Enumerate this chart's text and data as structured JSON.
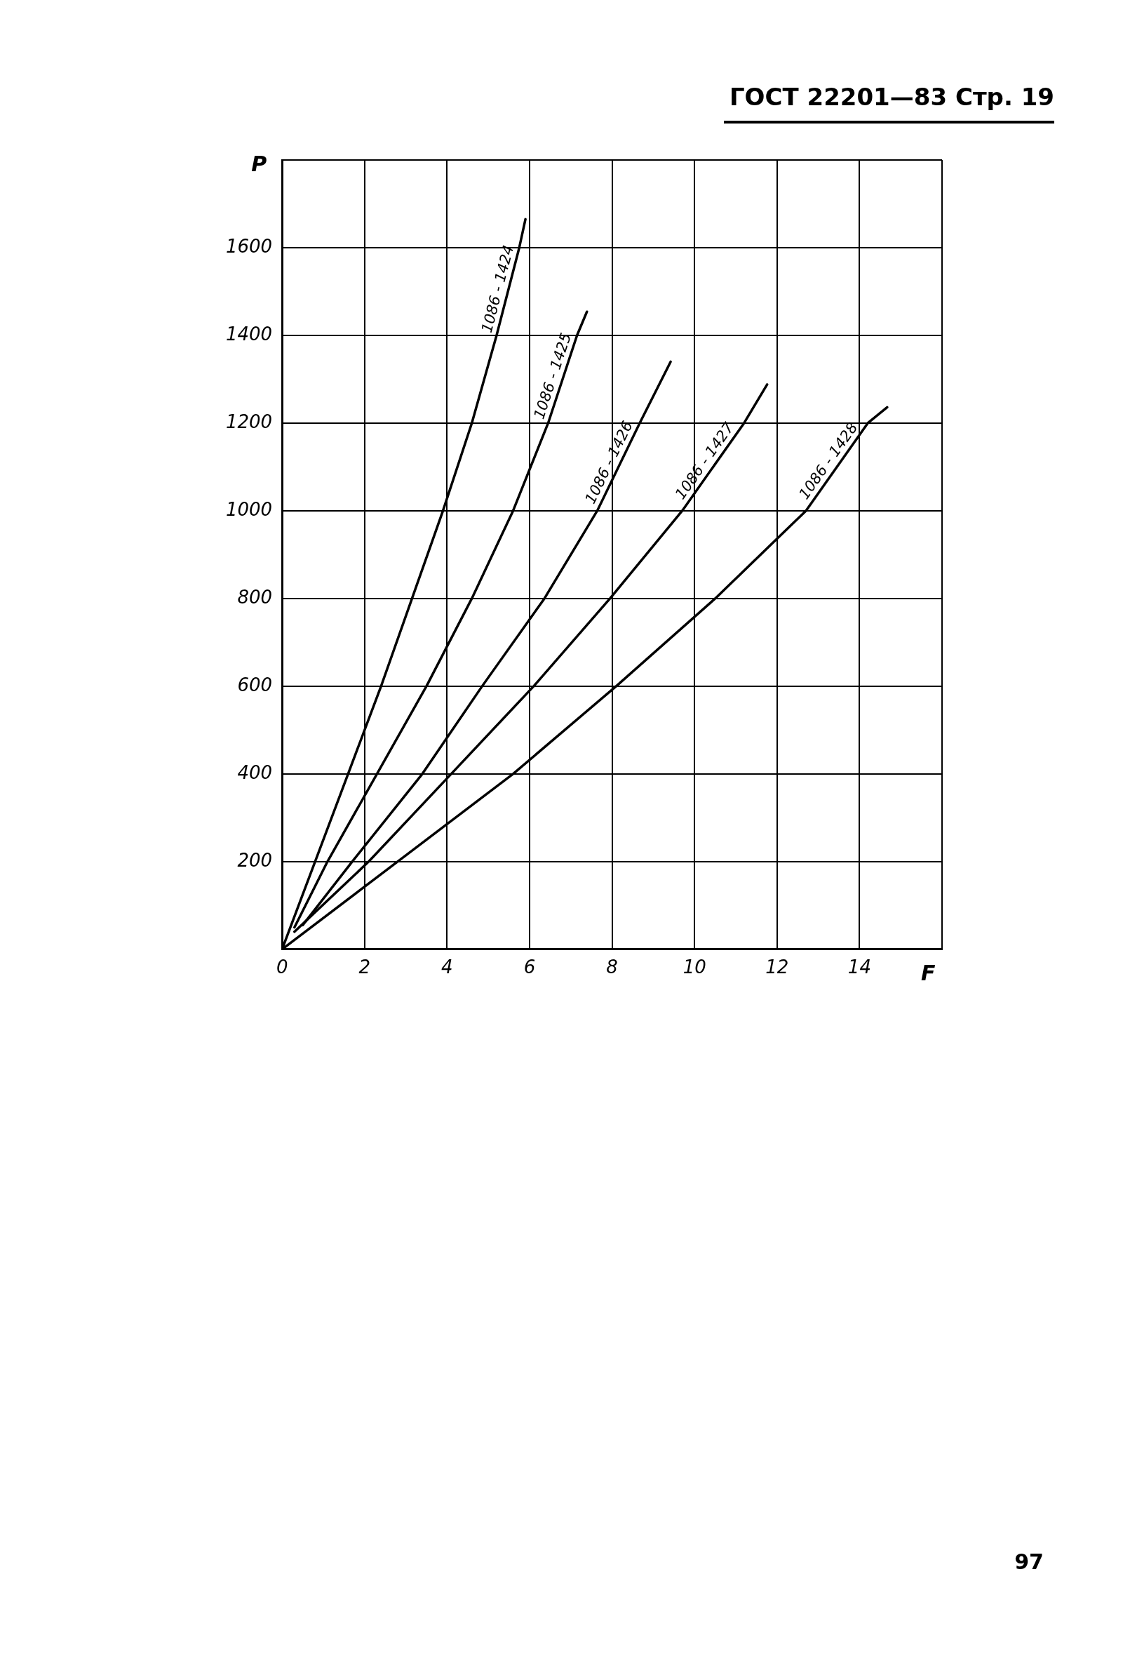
{
  "chart_data": {
    "type": "line",
    "title": "ГОСТ 22201—83 Стр. 19",
    "xlabel": "F",
    "ylabel": "P",
    "annotations": [
      "97"
    ],
    "xlim": [
      0,
      16
    ],
    "xticks": [
      0,
      2,
      4,
      6,
      8,
      10,
      12,
      14,
      {
        "value": 16,
        "label": null
      }
    ],
    "ylim": [
      0,
      1800
    ],
    "yticks": [
      {
        "value": 0,
        "label": null
      },
      200,
      400,
      600,
      800,
      1000,
      1200,
      1400,
      1600,
      {
        "value": 1800,
        "label": null
      }
    ],
    "grid": true,
    "legend": false,
    "marker": "none",
    "line_style": "solid",
    "series": [
      {
        "name": "1086 - 1424",
        "color": "#000000",
        "x": [
          0,
          0.8,
          1.6,
          2.4,
          3.15,
          3.9,
          4.6,
          5.2,
          5.75,
          5.9
        ],
        "values": [
          0,
          200,
          400,
          600,
          800,
          1000,
          1200,
          1400,
          1600,
          1665
        ]
      },
      {
        "name": "1086 - 1425",
        "color": "#000000",
        "x": [
          0.3,
          1.1,
          2.3,
          3.5,
          4.6,
          5.6,
          6.45,
          7.15,
          7.39
        ],
        "values": [
          50,
          200,
          400,
          600,
          800,
          1000,
          1200,
          1400,
          1454
        ]
      },
      {
        "name": "1086 - 1426",
        "color": "#000000",
        "x": [
          0.5,
          1.7,
          3.4,
          4.85,
          6.36,
          7.64,
          8.67,
          9.42
        ],
        "values": [
          55,
          200,
          400,
          600,
          800,
          1000,
          1200,
          1340
        ]
      },
      {
        "name": "1086 - 1427",
        "color": "#000000",
        "x": [
          0.3,
          2.1,
          4.1,
          6.1,
          7.95,
          9.7,
          11.2,
          11.76
        ],
        "values": [
          40,
          200,
          400,
          600,
          800,
          1000,
          1200,
          1288
        ]
      },
      {
        "name": "1086 - 1428",
        "color": "#000000",
        "x": [
          0,
          2.8,
          5.6,
          8.1,
          10.5,
          12.7,
          14.2,
          14.67
        ],
        "values": [
          0,
          200,
          400,
          600,
          800,
          1000,
          1200,
          1236
        ]
      }
    ]
  }
}
